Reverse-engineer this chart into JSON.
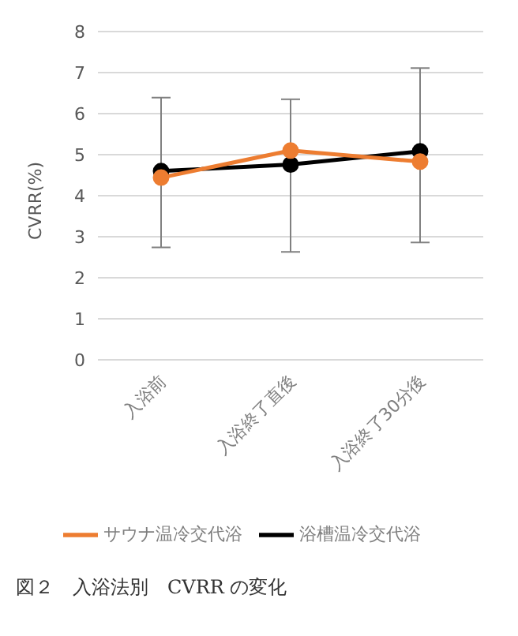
{
  "chart_data": {
    "type": "line",
    "ylabel": "CVRR(%)",
    "categories": [
      "入浴前",
      "入浴終了直後",
      "入浴終了30分後"
    ],
    "series": [
      {
        "name": "浴槽温冷交代浴",
        "color": "#000000",
        "values": [
          4.6,
          4.76,
          5.08
        ],
        "errors": [
          [
            2.74,
            6.39
          ],
          [
            2.63,
            6.35
          ],
          [
            2.86,
            7.11
          ]
        ]
      },
      {
        "name": "サウナ温冷交代浴",
        "color": "#ed7d31",
        "values": [
          4.44,
          5.1,
          4.83
        ]
      }
    ],
    "ylim": [
      0,
      8
    ],
    "yticks": [
      0,
      1,
      2,
      3,
      4,
      5,
      6,
      7,
      8
    ],
    "grid": "y",
    "legend": "bottom",
    "marker": "circle",
    "line_style": "solid",
    "annotations": [
      "図２　入浴法別　CVRR の変化"
    ]
  }
}
